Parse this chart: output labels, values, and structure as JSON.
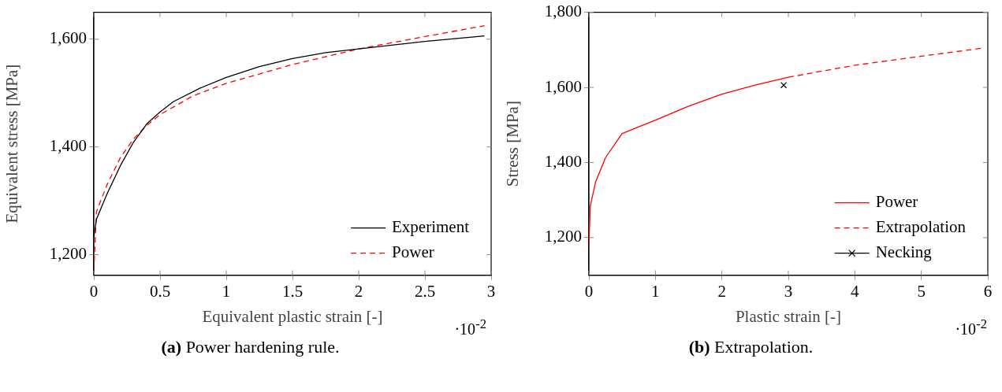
{
  "chart_data": [
    {
      "type": "line",
      "title": "(a) Power hardening rule.",
      "xlabel": "Equivalent plastic strain [-]",
      "ylabel": "Equivalent stress [MPa]",
      "annotations": [
        "·10$^{-2}$"
      ],
      "xlim": [
        0,
        3
      ],
      "xticks": [
        0,
        0.5,
        1,
        1.5,
        2,
        2.5,
        3
      ],
      "ylim": [
        1162,
        1650
      ],
      "yticks": [
        {
          "value": 1200,
          "label": "1,200"
        },
        {
          "value": 1400,
          "label": "1,400"
        },
        {
          "value": 1600,
          "label": "1,600"
        }
      ],
      "grid": false,
      "legend": "bottom right",
      "series": [
        {
          "name": "Experiment",
          "color": "#000000",
          "line_style": "solid",
          "x": [
            0,
            0.02,
            0.1,
            0.2,
            0.3,
            0.4,
            0.5,
            0.6,
            0.8,
            1.0,
            1.25,
            1.5,
            1.75,
            2.0,
            2.5,
            2.95
          ],
          "values": [
            1233,
            1266,
            1313,
            1365,
            1409,
            1443,
            1465,
            1484,
            1509,
            1529,
            1549,
            1564,
            1575,
            1582,
            1596,
            1606
          ]
        },
        {
          "name": "Power",
          "color": "#ff0000",
          "line_style": "dashed",
          "x": [
            0,
            0.02,
            0.1,
            0.2,
            0.3,
            0.4,
            0.5,
            0.75,
            1.0,
            1.5,
            2.0,
            2.5,
            2.95
          ],
          "values": [
            1170,
            1280,
            1330,
            1380,
            1415,
            1440,
            1460,
            1495,
            1518,
            1553,
            1582,
            1605,
            1625
          ]
        }
      ]
    },
    {
      "type": "line",
      "title": "(b) Extrapolation.",
      "xlabel": "Plastic strain [-]",
      "ylabel": "Stress [MPa]",
      "annotations": [
        "·10$^{-2}$"
      ],
      "xlim": [
        0,
        6
      ],
      "xticks": [
        0,
        1,
        2,
        3,
        4,
        5,
        6
      ],
      "ylim": [
        1100,
        1800
      ],
      "yticks": [
        {
          "value": 1200,
          "label": "1,200"
        },
        {
          "value": 1400,
          "label": "1,400"
        },
        {
          "value": 1600,
          "label": "1,600"
        },
        {
          "value": 1800,
          "label": "1,800"
        }
      ],
      "grid": false,
      "legend": "bottom right",
      "series": [
        {
          "name": "Power",
          "color": "#ff0000",
          "line_style": "solid",
          "x": [
            0,
            0.02,
            0.1,
            0.25,
            0.5,
            1.0,
            1.5,
            2.0,
            2.5,
            3.0
          ],
          "values": [
            1176,
            1283,
            1348,
            1413,
            1477,
            1513,
            1550,
            1582,
            1606,
            1627
          ]
        },
        {
          "name": "Extrapolation",
          "color": "#ff0000",
          "line_style": "dashed",
          "x": [
            3.0,
            4.0,
            5.0,
            5.9
          ],
          "values": [
            1627,
            1659,
            1683,
            1704
          ]
        },
        {
          "name": "Necking",
          "type": "scatter",
          "marker": "cross",
          "color": "#000000",
          "x": [
            2.93
          ],
          "values": [
            1606
          ]
        }
      ]
    }
  ]
}
